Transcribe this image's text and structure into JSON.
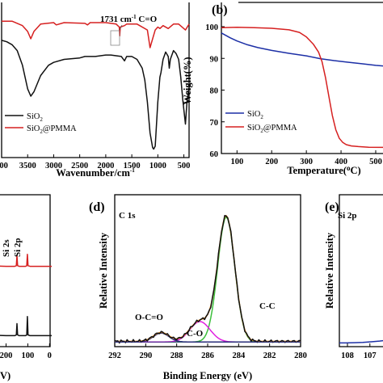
{
  "colors": {
    "black": "#111111",
    "red": "#d62020",
    "blue": "#1c2fa6",
    "green": "#3cbf3c",
    "pink": "#e020e0",
    "orange": "#e8902a",
    "navy": "#2a2e7a"
  },
  "chart_data": [
    {
      "panel": "a",
      "type": "line",
      "xlabel": "Wavenumber/cm",
      "xlabel_sup": "-1",
      "xlim": [
        4000,
        400
      ],
      "xticks": [
        "000",
        "3500",
        "3000",
        "2500",
        "2000",
        "1500",
        "1000",
        "500"
      ],
      "xtick_values": [
        4000,
        3500,
        3000,
        2500,
        2000,
        1500,
        1000,
        500
      ],
      "annotation": {
        "text": "1731 cm",
        "sup": "-1",
        "tail": " C=O",
        "x": 1731
      },
      "legend": [
        {
          "label": "SiO",
          "sub": "2",
          "color": "black"
        },
        {
          "label": "SiO",
          "sub": "2",
          "tail": "@PMMA",
          "color": "red"
        }
      ],
      "series": [
        {
          "color": "red",
          "x": [
            4000,
            3800,
            3600,
            3500,
            3440,
            3380,
            3250,
            3000,
            2950,
            2800,
            2400,
            2350,
            2300,
            2000,
            1800,
            1740,
            1731,
            1720,
            1640,
            1600,
            1400,
            1200,
            1150,
            1100,
            1050,
            1000,
            960,
            900,
            800,
            700,
            600,
            470,
            400
          ],
          "y": [
            0.9,
            0.9,
            0.87,
            0.83,
            0.78,
            0.83,
            0.88,
            0.89,
            0.875,
            0.89,
            0.885,
            0.875,
            0.89,
            0.89,
            0.88,
            0.86,
            0.8,
            0.86,
            0.87,
            0.88,
            0.88,
            0.84,
            0.72,
            0.78,
            0.84,
            0.86,
            0.85,
            0.87,
            0.85,
            0.88,
            0.88,
            0.84,
            0.88
          ]
        },
        {
          "color": "black",
          "x": [
            4000,
            3900,
            3800,
            3700,
            3600,
            3500,
            3440,
            3380,
            3250,
            3100,
            3000,
            2800,
            2500,
            2400,
            2200,
            2000,
            1900,
            1700,
            1640,
            1600,
            1500,
            1400,
            1300,
            1250,
            1200,
            1150,
            1100,
            1080,
            1050,
            1000,
            960,
            940,
            900,
            850,
            800,
            780,
            760,
            700,
            650,
            600,
            560,
            520,
            470,
            440,
            400
          ],
          "y": [
            0.77,
            0.76,
            0.74,
            0.7,
            0.6,
            0.44,
            0.39,
            0.42,
            0.53,
            0.6,
            0.62,
            0.64,
            0.65,
            0.66,
            0.66,
            0.67,
            0.67,
            0.66,
            0.63,
            0.66,
            0.66,
            0.64,
            0.58,
            0.5,
            0.35,
            0.14,
            0.04,
            0.03,
            0.05,
            0.35,
            0.52,
            0.55,
            0.64,
            0.69,
            0.66,
            0.58,
            0.64,
            0.7,
            0.68,
            0.64,
            0.52,
            0.36,
            0.2,
            0.35,
            0.45
          ]
        }
      ]
    },
    {
      "panel": "b",
      "type": "line",
      "xlabel": "Temperature(",
      "xlabel_tail": "C)",
      "ylabel": "Weight(%)",
      "xlim": [
        55,
        535
      ],
      "ylim": [
        60,
        100
      ],
      "xticks": [
        "100",
        "200",
        "300",
        "400",
        "500"
      ],
      "xtick_values": [
        100,
        200,
        300,
        400,
        500
      ],
      "yticks": [
        "60",
        "70",
        "80",
        "90",
        "100"
      ],
      "ytick_values": [
        60,
        70,
        80,
        90,
        100
      ],
      "legend": [
        {
          "label": "SiO",
          "sub": "2",
          "color": "blue"
        },
        {
          "label": "SiO",
          "sub": "2",
          "tail": "@PMMA",
          "color": "red"
        }
      ],
      "series": [
        {
          "color": "blue",
          "x": [
            55,
            80,
            100,
            130,
            160,
            200,
            250,
            300,
            340,
            380,
            420,
            460,
            500,
            535
          ],
          "y": [
            98.0,
            96.5,
            95.5,
            94.3,
            93.4,
            92.5,
            91.6,
            90.8,
            89.9,
            89.3,
            88.8,
            88.3,
            87.8,
            87.5
          ]
        },
        {
          "color": "red",
          "x": [
            55,
            100,
            150,
            200,
            250,
            280,
            300,
            320,
            335,
            345,
            355,
            365,
            375,
            385,
            395,
            405,
            415,
            430,
            450,
            480,
            535
          ],
          "y": [
            99.7,
            99.8,
            99.7,
            99.5,
            99.0,
            98.2,
            96.8,
            94.5,
            92.0,
            89.0,
            84.0,
            78.0,
            72.0,
            67.5,
            64.8,
            63.5,
            62.8,
            62.4,
            62.2,
            62.0,
            61.9
          ]
        }
      ]
    },
    {
      "panel": "c",
      "type": "line",
      "xlabel": "V)",
      "xticks": [
        "200",
        "100",
        "0"
      ],
      "xtick_values": [
        200,
        100,
        0
      ],
      "xlim": [
        280,
        -10
      ],
      "peak_labels": [
        "Si 2s",
        "Si 2p"
      ],
      "series": [
        {
          "color": "red",
          "x": [
            280,
            200,
            160,
            153,
            150,
            147,
            140,
            110,
            105,
            102,
            99,
            90,
            20,
            0,
            -10
          ],
          "y": [
            0.55,
            0.545,
            0.545,
            0.55,
            0.62,
            0.55,
            0.545,
            0.545,
            0.55,
            0.63,
            0.55,
            0.545,
            0.545,
            0.545,
            0.545
          ]
        },
        {
          "color": "black",
          "x": [
            280,
            200,
            160,
            153,
            150,
            147,
            140,
            110,
            105,
            102,
            99,
            90,
            20,
            0,
            -10
          ],
          "y": [
            0.06,
            0.055,
            0.055,
            0.06,
            0.14,
            0.06,
            0.055,
            0.055,
            0.06,
            0.19,
            0.06,
            0.055,
            0.055,
            0.055,
            0.055
          ]
        }
      ]
    },
    {
      "panel": "d",
      "title": "C 1s",
      "type": "line",
      "xlabel": "Binding Energy (eV)",
      "ylabel": "Relative  Intensity",
      "xlim": [
        292,
        280
      ],
      "xticks": [
        "292",
        "290",
        "288",
        "286",
        "284",
        "282",
        "280"
      ],
      "xtick_values": [
        292,
        290,
        288,
        286,
        284,
        282,
        280
      ],
      "peak_labels": [
        {
          "text": "O-C=O",
          "x": 289.2
        },
        {
          "text": "C-O",
          "x": 286.5
        },
        {
          "text": "C-C",
          "x": 284.8
        }
      ],
      "components": [
        {
          "color": "green",
          "center": 284.8,
          "height": 0.98,
          "sigma": 0.55
        },
        {
          "color": "pink",
          "center": 286.5,
          "height": 0.16,
          "sigma": 0.65
        },
        {
          "color": "navy",
          "center": 289.0,
          "height": 0.07,
          "sigma": 0.5
        }
      ],
      "series": [
        {
          "color": "black",
          "role": "envelope"
        },
        {
          "color": "orange",
          "role": "fit"
        }
      ]
    },
    {
      "panel": "e",
      "title": "Si 2p",
      "type": "line",
      "ylabel": "Relative  Intensity",
      "xticks": [
        "108",
        "107",
        "1"
      ],
      "xtick_values": [
        108,
        107,
        106
      ],
      "xlim": [
        108.4,
        105.5
      ],
      "series": [
        {
          "color": "blue",
          "x": [
            108.4,
            108.0,
            107.5,
            107.0,
            106.5,
            106.0,
            105.5
          ],
          "y": [
            0.02,
            0.02,
            0.022,
            0.024,
            0.028,
            0.033,
            0.04
          ]
        }
      ]
    }
  ]
}
